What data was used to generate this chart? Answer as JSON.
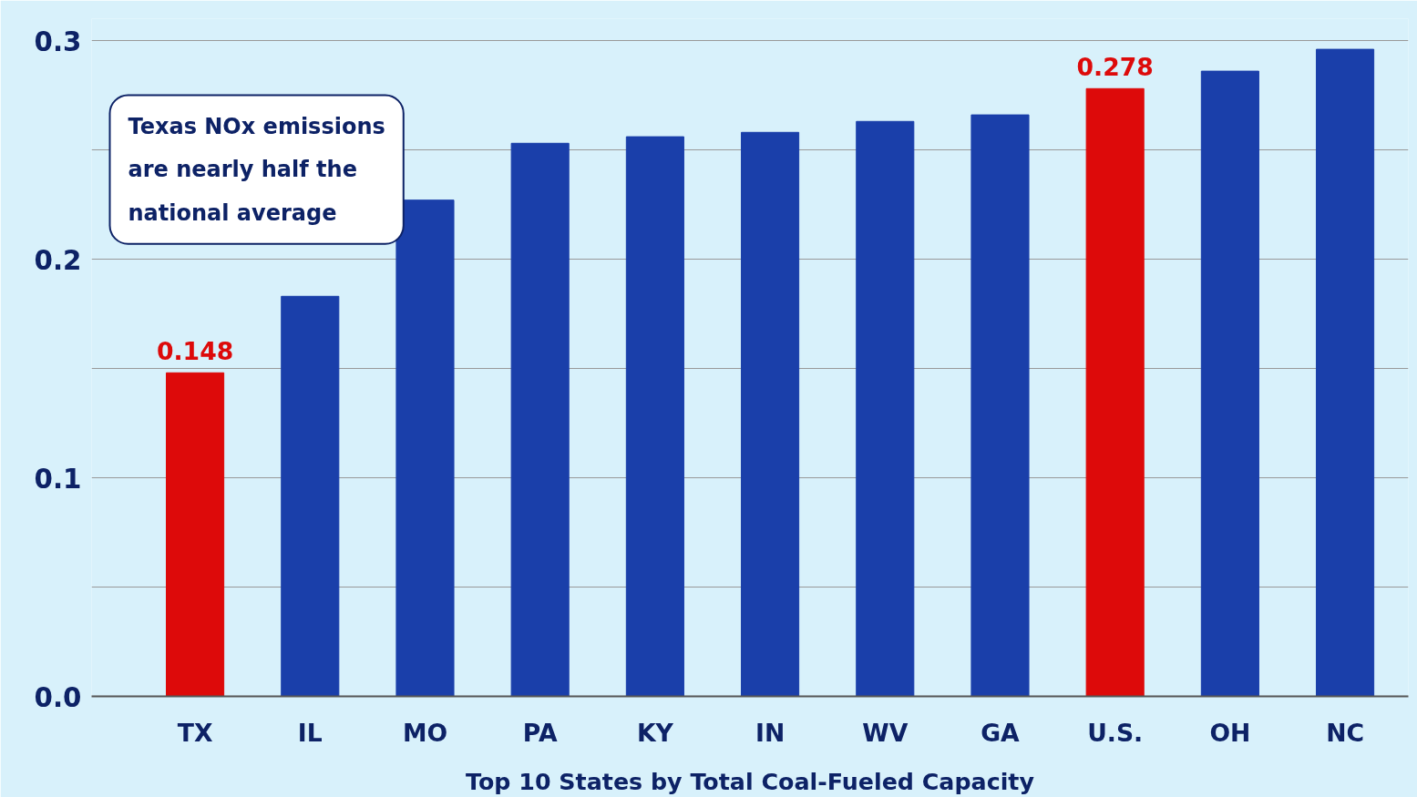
{
  "chart_data": {
    "type": "bar",
    "xlabel": "Top 10 States by Total Coal-Fueled Capacity",
    "categories": [
      "TX",
      "IL",
      "MO",
      "PA",
      "KY",
      "IN",
      "WV",
      "GA",
      "U.S.",
      "OH",
      "NC"
    ],
    "values": [
      0.148,
      0.183,
      0.227,
      0.253,
      0.256,
      0.258,
      0.263,
      0.266,
      0.278,
      0.286,
      0.296
    ],
    "colors": [
      "#dd0a0a",
      "#1a3faa",
      "#1a3faa",
      "#1a3faa",
      "#1a3faa",
      "#1a3faa",
      "#1a3faa",
      "#1a3faa",
      "#dd0a0a",
      "#1a3faa",
      "#1a3faa"
    ],
    "value_labels": [
      "0.148",
      null,
      null,
      null,
      null,
      null,
      null,
      null,
      "0.278",
      null,
      null
    ],
    "ylim": [
      0,
      0.31
    ],
    "yticks": [
      {
        "value": 0,
        "label": "0.0"
      },
      {
        "value": 0.05,
        "label": null
      },
      0.1,
      {
        "value": 0.15,
        "label": null
      },
      0.2,
      {
        "value": 0.25,
        "label": null
      },
      0.3
    ],
    "grid": "y",
    "annotations": [
      "Texas NOx emissions are nearly half the national average"
    ]
  }
}
